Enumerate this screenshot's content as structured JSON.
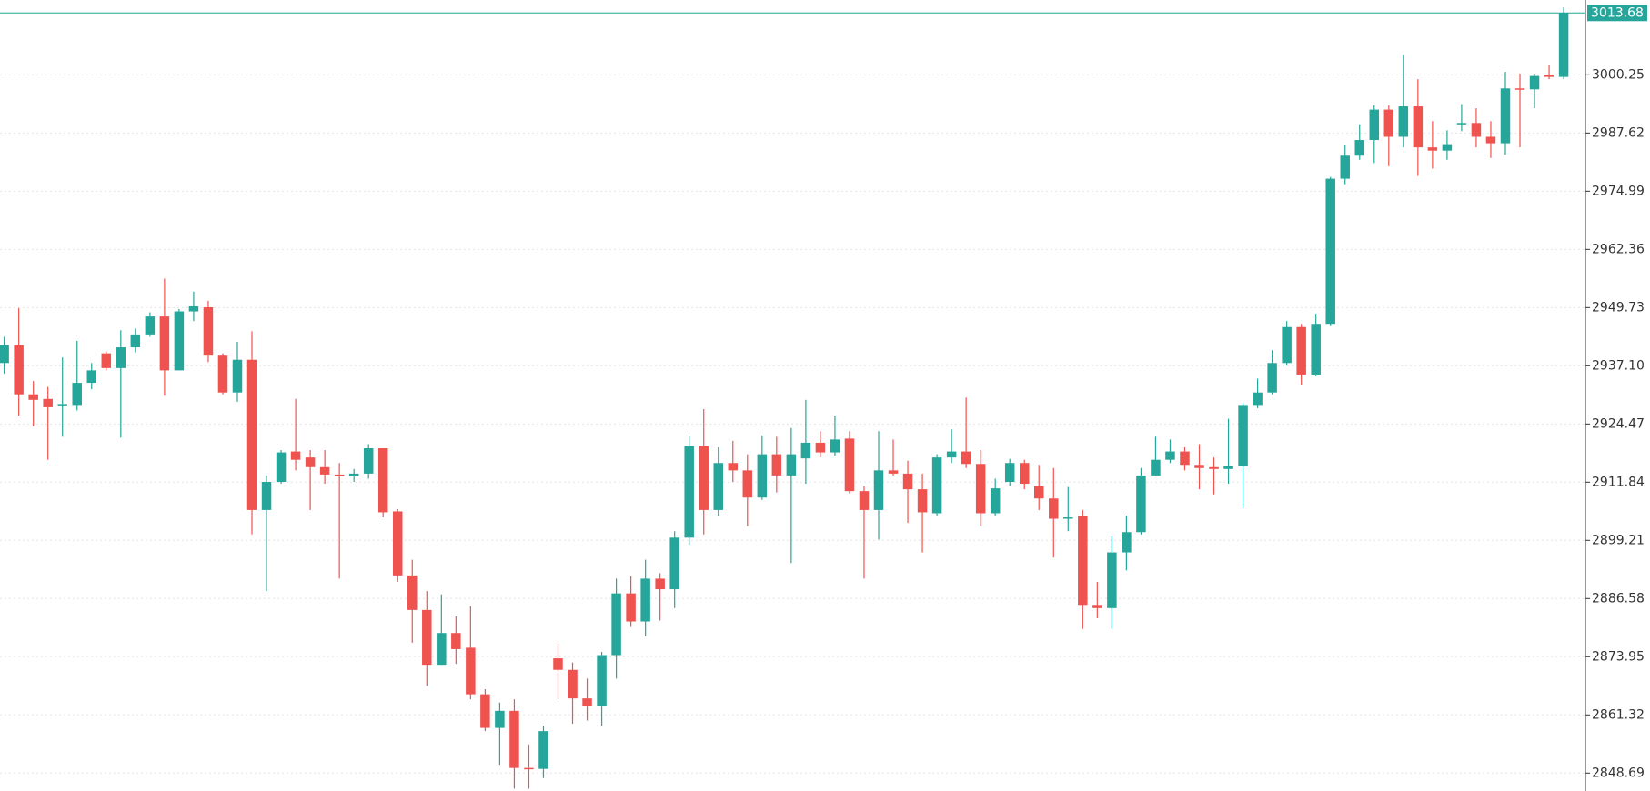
{
  "chart_data": {
    "type": "candlestick",
    "up_color": "#26a69a",
    "down_color": "#ef5350",
    "last_price": 3013.68,
    "ylim": [
      2844.8,
      3016.5
    ],
    "yticks": [
      2848.69,
      2861.32,
      2873.95,
      2886.58,
      2899.21,
      2911.84,
      2924.47,
      {
        "value": 2937.1,
        "label": "2937.10"
      },
      2949.73,
      2962.36,
      2974.99,
      2987.62,
      3000.25
    ],
    "grid": true,
    "open": [
      2937.7,
      2941.6,
      2930.9,
      2929.9,
      2928.6,
      2928.6,
      2933.4,
      2939.8,
      2936.6,
      2941.1,
      2943.9,
      2947.8,
      2936.1,
      2948.9,
      2949.8,
      2939.3,
      2931.3,
      2938.4,
      2905.8,
      2911.9,
      2918.5,
      2917.2,
      2915.1,
      2913.5,
      2913.1,
      2913.7,
      2919.2,
      2905.5,
      2891.6,
      2884.1,
      2872.2,
      2879.1,
      2875.9,
      2865.8,
      2858.5,
      2862.2,
      2849.8,
      2849.6,
      2873.6,
      2871.1,
      2864.9,
      2863.3,
      2874.3,
      2887.7,
      2881.6,
      2890.9,
      2888.6,
      2899.8,
      2919.7,
      2905.8,
      2916.0,
      2914.4,
      2908.5,
      2917.9,
      2913.3,
      2917.0,
      2920.4,
      2918.3,
      2921.3,
      2909.9,
      2905.8,
      2914.4,
      2913.7,
      2910.3,
      2905.1,
      2917.2,
      2918.5,
      2915.8,
      2905.1,
      2911.9,
      2916.0,
      2911.0,
      2908.3,
      2903.9,
      2904.4,
      2885.2,
      2884.5,
      2896.6,
      2901.0,
      2913.3,
      2916.7,
      2918.5,
      2915.6,
      2915.1,
      2914.7,
      2915.3,
      2928.6,
      2931.3,
      2937.7,
      2945.5,
      2935.2,
      2946.2,
      2977.7,
      2982.7,
      2986.1,
      2992.7,
      2986.8,
      2993.4,
      2984.5,
      2983.8,
      2989.5,
      2989.8,
      2986.8,
      2985.4,
      2997.3,
      2997.1,
      3000.3,
      2999.8
    ],
    "high": [
      2943.4,
      2949.6,
      2933.8,
      2932.5,
      2938.9,
      2942.5,
      2937.7,
      2940.2,
      2944.8,
      2945.2,
      2948.7,
      2956.0,
      2949.4,
      2953.2,
      2951.2,
      2939.8,
      2942.3,
      2944.6,
      2913.3,
      2918.8,
      2929.9,
      2918.8,
      2918.8,
      2916.0,
      2914.7,
      2920.1,
      2919.2,
      2906.0,
      2895.0,
      2888.2,
      2887.5,
      2882.7,
      2884.9,
      2866.9,
      2864.0,
      2864.7,
      2854.9,
      2859.0,
      2876.8,
      2872.7,
      2869.2,
      2875.0,
      2890.9,
      2891.4,
      2895.0,
      2892.1,
      2901.2,
      2922.0,
      2927.7,
      2919.4,
      2920.8,
      2917.9,
      2922.0,
      2921.7,
      2923.6,
      2929.7,
      2922.9,
      2926.3,
      2922.9,
      2911.0,
      2922.9,
      2921.1,
      2916.5,
      2913.7,
      2917.9,
      2923.3,
      2930.2,
      2918.8,
      2912.6,
      2916.9,
      2916.7,
      2915.6,
      2914.9,
      2910.8,
      2905.8,
      2890.2,
      2900.1,
      2904.6,
      2914.9,
      2921.7,
      2921.1,
      2919.4,
      2920.1,
      2917.2,
      2925.6,
      2929.1,
      2934.3,
      2940.5,
      2946.8,
      2946.2,
      2948.4,
      2978.1,
      2985.0,
      2989.5,
      2993.6,
      2993.6,
      3004.6,
      2999.3,
      2990.2,
      2988.2,
      2993.9,
      2993.0,
      2990.2,
      3000.9,
      3000.5,
      3000.5,
      3002.3,
      3014.9
    ],
    "low": [
      2935.4,
      2926.3,
      2924.0,
      2916.7,
      2921.7,
      2927.4,
      2932.0,
      2936.1,
      2921.5,
      2940.0,
      2943.4,
      2930.6,
      2936.1,
      2946.8,
      2937.9,
      2930.9,
      2929.3,
      2900.5,
      2888.2,
      2911.5,
      2914.4,
      2905.8,
      2911.5,
      2890.9,
      2911.9,
      2912.6,
      2904.2,
      2890.2,
      2877.0,
      2867.6,
      2872.2,
      2872.4,
      2864.7,
      2857.8,
      2850.5,
      2845.3,
      2845.3,
      2847.6,
      2864.7,
      2859.4,
      2860.1,
      2859.0,
      2869.2,
      2880.4,
      2878.4,
      2881.8,
      2884.5,
      2898.2,
      2900.5,
      2904.6,
      2911.9,
      2902.3,
      2908.0,
      2909.6,
      2894.3,
      2911.5,
      2917.2,
      2917.6,
      2909.4,
      2890.9,
      2899.4,
      2913.3,
      2903.0,
      2896.6,
      2904.6,
      2916.0,
      2914.9,
      2902.3,
      2904.6,
      2911.0,
      2910.3,
      2905.8,
      2895.5,
      2901.2,
      2880.0,
      2882.3,
      2880.0,
      2892.7,
      2900.5,
      2913.3,
      2916.0,
      2914.4,
      2910.3,
      2909.2,
      2911.5,
      2906.2,
      2927.9,
      2930.9,
      2937.2,
      2932.9,
      2934.8,
      2945.7,
      2976.5,
      2981.8,
      2981.1,
      2980.4,
      2984.5,
      2978.3,
      2979.9,
      2981.8,
      2988.0,
      2984.5,
      2982.2,
      2982.9,
      2984.5,
      2993.0,
      2999.3,
      2999.3
    ],
    "close": [
      2941.6,
      2930.9,
      2929.7,
      2928.1,
      2928.8,
      2933.4,
      2936.1,
      2936.6,
      2941.1,
      2943.9,
      2947.8,
      2936.1,
      2948.9,
      2950.0,
      2939.3,
      2931.3,
      2938.4,
      2905.8,
      2911.9,
      2918.3,
      2916.7,
      2915.1,
      2913.5,
      2913.1,
      2913.7,
      2919.2,
      2905.3,
      2891.6,
      2884.1,
      2872.2,
      2879.1,
      2875.6,
      2865.8,
      2858.5,
      2862.2,
      2849.8,
      2849.6,
      2857.8,
      2871.1,
      2864.9,
      2863.3,
      2874.3,
      2887.7,
      2881.6,
      2890.9,
      2888.6,
      2899.8,
      2919.7,
      2905.8,
      2916.0,
      2914.4,
      2908.5,
      2917.9,
      2913.3,
      2917.9,
      2920.4,
      2918.3,
      2921.1,
      2909.9,
      2905.8,
      2914.4,
      2913.7,
      2910.3,
      2905.3,
      2917.2,
      2918.5,
      2915.8,
      2905.1,
      2910.5,
      2916.0,
      2911.5,
      2908.3,
      2903.9,
      2904.2,
      2885.2,
      2884.5,
      2896.6,
      2901.0,
      2913.3,
      2916.7,
      2918.5,
      2915.6,
      2914.9,
      2914.7,
      2915.3,
      2928.6,
      2931.3,
      2937.7,
      2945.5,
      2935.2,
      2946.2,
      2977.7,
      2982.7,
      2986.1,
      2992.7,
      2986.8,
      2993.4,
      2984.5,
      2983.8,
      2985.2,
      2989.8,
      2986.8,
      2985.4,
      2997.3,
      2997.1,
      3000.0,
      2999.8,
      3013.7
    ]
  }
}
